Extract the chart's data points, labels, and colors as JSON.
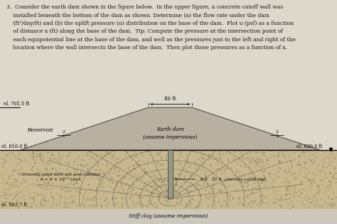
{
  "el_701_5": "el. 701.5 ft",
  "el_616_0_left": "el. 616.0 ft",
  "el_620_0_right": "el. 620.0 ft",
  "el_503_7": "el. 503.7 ft",
  "label_reservoir": "Reservoir",
  "label_dam": "Earth dam\n(assume impervious)",
  "label_soil": "Gravelly sand with silt and cobbles\nk = 6 × 10⁻² cm/s",
  "label_cutoff": "8 ft   52 ft- concrete cutoff wall",
  "label_clay": "Stiff clay (assume impervious)",
  "label_40ft": "40 ft",
  "bg_color": "#ddd8cc",
  "soil_color": "#c8b890",
  "clay_color": "#ccc8bc",
  "dam_color": "#b8b0a0",
  "text_color": "#111111",
  "line_color": "#333333",
  "flow_color": "#666655",
  "problem_text_line1": "3.  Consider the earth dam shown in the figure below.  In the upper figure, a concrete cutoff wall was",
  "problem_text_line2": "    installed beneath the bottom of the dam as shown. Determine (a) the flow rate under the dam",
  "problem_text_line3": "    (ft³/day/ft) and (b) the uplift pressure (u) distribution on the base of the dam.  Plot u (psf) as a function",
  "problem_text_line4": "    of distance x (ft) along the base of the dam.  Tip: Compute the pressure at the intersection point of",
  "problem_text_line5": "    each equipotential line at the base of the dam, and well as the pressures just to the left and right of the",
  "problem_text_line6": "    location where the wall intersects the base of the dam.  Then plot those pressures as a function of x."
}
